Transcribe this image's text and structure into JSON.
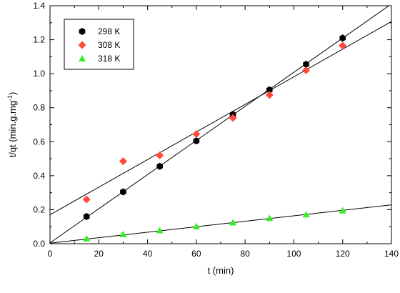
{
  "chart_data": {
    "type": "scatter",
    "xlabel": "t (min)",
    "ylabel": {
      "main": "t/qt (min.g.mg",
      "sup": "-1",
      "close": ")"
    },
    "xlim": [
      0,
      140
    ],
    "ylim": [
      0,
      1.4
    ],
    "xticks": [
      "0",
      "20",
      "40",
      "60",
      "80",
      "100",
      "120",
      "140"
    ],
    "yticks": [
      "0.0",
      "0.2",
      "0.4",
      "0.6",
      "0.8",
      "1.0",
      "1.2",
      "1.4"
    ],
    "grid": false,
    "legend_position": "top-left",
    "series": [
      {
        "name": "298 K",
        "marker": "hexagon",
        "color": "#000000",
        "x": [
          15,
          30,
          45,
          60,
          75,
          90,
          105,
          120
        ],
        "y": [
          0.16,
          0.305,
          0.455,
          0.605,
          0.76,
          0.905,
          1.055,
          1.21
        ],
        "fit": {
          "slope": 0.01004,
          "intercept": 0.0047
        }
      },
      {
        "name": "308 K",
        "marker": "diamond",
        "color": "#ff4a3a",
        "x": [
          15,
          30,
          45,
          60,
          75,
          90,
          105,
          120
        ],
        "y": [
          0.26,
          0.485,
          0.52,
          0.645,
          0.74,
          0.875,
          1.02,
          1.165
        ],
        "fit": {
          "slope": 0.00812,
          "intercept": 0.17
        }
      },
      {
        "name": "318 K",
        "marker": "triangle",
        "color": "#33ee22",
        "x": [
          15,
          30,
          45,
          60,
          75,
          90,
          105,
          120
        ],
        "y": [
          0.03,
          0.055,
          0.078,
          0.102,
          0.124,
          0.15,
          0.172,
          0.195
        ],
        "fit": {
          "slope": 0.00161,
          "intercept": 0.003
        }
      }
    ]
  }
}
